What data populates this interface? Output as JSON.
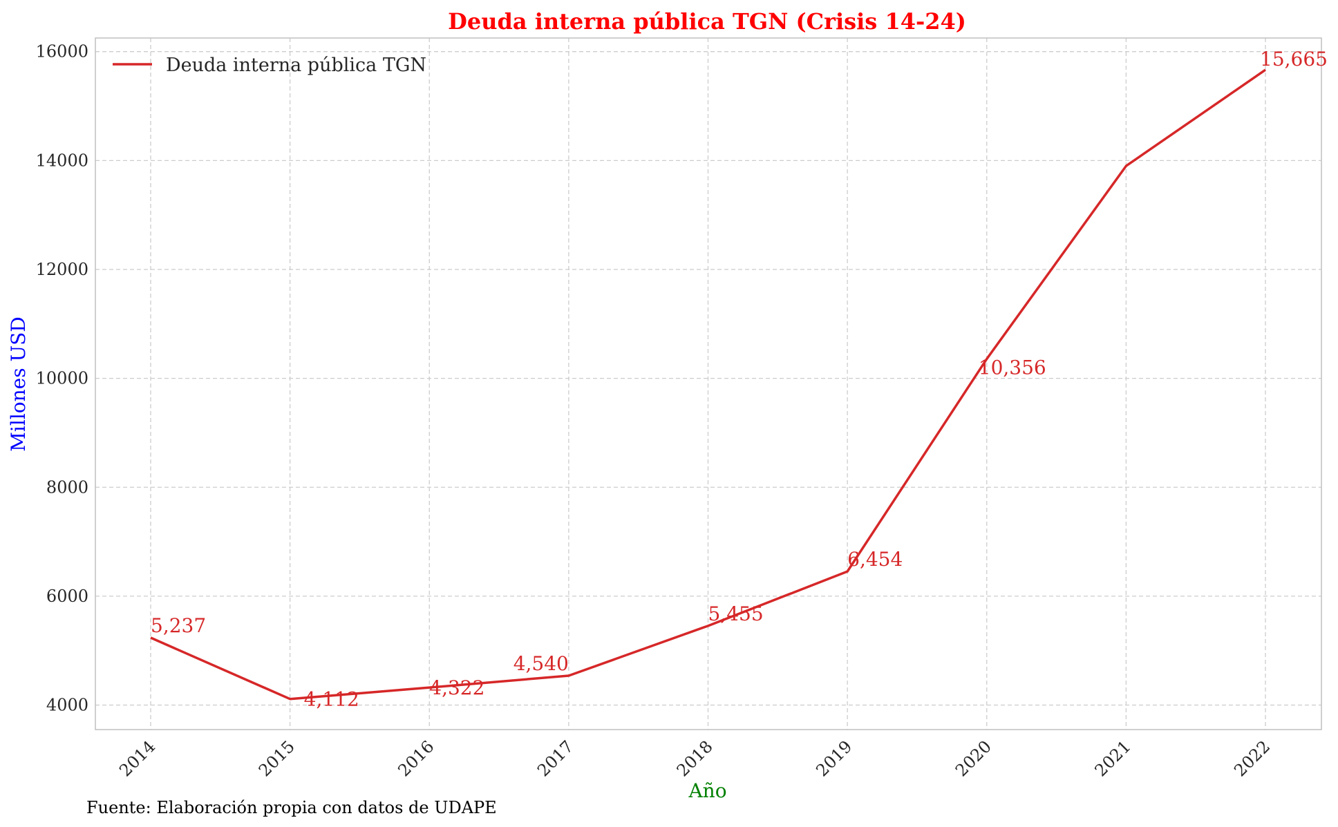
{
  "chart_data": {
    "type": "line",
    "title": "Deuda interna pública TGN (Crisis 14-24)",
    "xlabel": "Año",
    "ylabel": "Millones USD",
    "categories": [
      "2014",
      "2015",
      "2016",
      "2017",
      "2018",
      "2019",
      "2020",
      "2021",
      "2022"
    ],
    "series": [
      {
        "name": "Deuda interna pública TGN",
        "color": "#d62728",
        "values": [
          5237,
          4112,
          4322,
          4540,
          5455,
          6454,
          10356,
          13900,
          15665
        ],
        "labels": [
          "5,237",
          "4,112",
          "4,322",
          "4,540",
          "5,455",
          "6,454",
          "10,356",
          "",
          "15,665"
        ]
      }
    ],
    "ylim": [
      3550,
      16250
    ],
    "yticks": [
      "4000",
      "6000",
      "8000",
      "10000",
      "12000",
      "14000",
      "16000"
    ],
    "grid": true,
    "legend_position": "top-left"
  },
  "source_note": "Fuente: Elaboración propia con datos de UDAPE",
  "colors": {
    "title": "#ff0000",
    "ylabel": "#0000ff",
    "xlabel": "#008000",
    "line": "#d62728",
    "grid": "#cccccc",
    "axes": "#bfbfbf"
  }
}
